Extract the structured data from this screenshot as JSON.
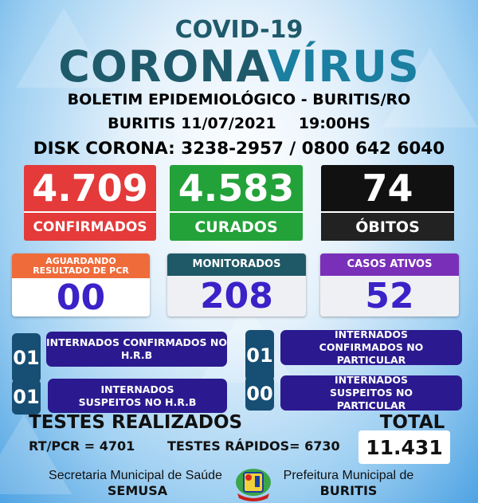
{
  "header": {
    "kicker": "COVID-19",
    "title_a": "CORONA",
    "title_b": "VÍRUS",
    "subtitle": "BOLETIM EPIDEMIOLÓGICO - BURITIS/RO",
    "date": "BURITIS 11/07/2021",
    "time": "19:00HS",
    "hotline": "DISK CORONA: 3238-2957 / 0800 642 6040"
  },
  "colors": {
    "dark_teal": "#1f5a6b",
    "light_teal": "#1a7fa0",
    "red": "#e43a3a",
    "green": "#23a23a",
    "black": "#111111",
    "orange": "#ef6b3a",
    "teal": "#1f5866",
    "purple": "#7a2fb8",
    "number_blue": "#3a22c8",
    "navy": "#2b1a8f"
  },
  "main_stats": [
    {
      "value": "4.709",
      "label": "CONFIRMADOS"
    },
    {
      "value": "4.583",
      "label": "CURADOS"
    },
    {
      "value": "74",
      "label": "ÓBITOS"
    }
  ],
  "secondary_stats": [
    {
      "label": "AGUARDANDO RESULTADO DE PCR",
      "value": "00"
    },
    {
      "label": "MONITORADOS",
      "value": "208"
    },
    {
      "label": "CASOS ATIVOS",
      "value": "52"
    }
  ],
  "hospital": [
    {
      "value": "01",
      "label": "INTERNADOS CONFIRMADOS NO H.R.B"
    },
    {
      "value": "01",
      "label": "INTERNADOS CONFIRMADOS NO PARTICULAR"
    },
    {
      "value": "01",
      "label": "INTERNADOS SUSPEITOS NO H.R.B"
    },
    {
      "value": "00",
      "label": "INTERNADOS SUSPEITOS NO PARTICULAR"
    }
  ],
  "tests": {
    "title": "TESTES REALIZADOS",
    "rtpcr": "RT/PCR = 4701",
    "rapid": "TESTES RÁPIDOS= 6730",
    "total_label": "TOTAL",
    "total_value": "11.431"
  },
  "footer": {
    "left_line1": "Secretaria Municipal de Saúde",
    "left_line2": "SEMUSA",
    "right_line1": "Prefeitura Municipal de",
    "right_line2": "BURITIS",
    "logo_icon": "municipal-coat-of-arms-icon"
  }
}
